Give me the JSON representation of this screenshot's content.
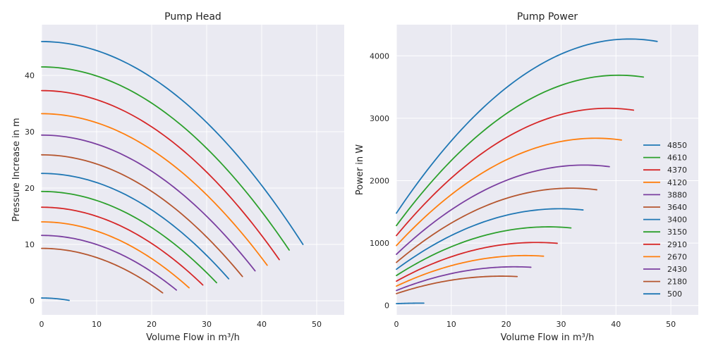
{
  "chart_data": [
    {
      "type": "line",
      "title": "Pump Head",
      "xlabel": "Volume Flow in m³/h",
      "ylabel": "Pressure Increase in m",
      "xlim": [
        0,
        55
      ],
      "ylim": [
        -2.5,
        49
      ],
      "xticks": [
        0,
        10,
        20,
        30,
        40,
        50
      ],
      "yticks": [
        0,
        10,
        20,
        30,
        40
      ],
      "grid": true,
      "legend": "none",
      "series": [
        {
          "rpm": "4850",
          "color": "#1f77b4",
          "shape": "head",
          "h0": 46.0,
          "qmax": 47.5,
          "hend": 10.0
        },
        {
          "rpm": "4610",
          "color": "#2ca02c",
          "shape": "head",
          "h0": 41.5,
          "qmax": 45.0,
          "hend": 9.0
        },
        {
          "rpm": "4370",
          "color": "#d62728",
          "shape": "head",
          "h0": 37.3,
          "qmax": 43.2,
          "hend": 7.3
        },
        {
          "rpm": "4120",
          "color": "#ff7f0e",
          "shape": "head",
          "h0": 33.2,
          "qmax": 41.0,
          "hend": 6.3
        },
        {
          "rpm": "3880",
          "color": "#7b3fa0",
          "shape": "head",
          "h0": 29.4,
          "qmax": 38.8,
          "hend": 5.3
        },
        {
          "rpm": "3640",
          "color": "#b5562f",
          "shape": "head",
          "h0": 25.9,
          "qmax": 36.5,
          "hend": 4.3
        },
        {
          "rpm": "3400",
          "color": "#1f77b4",
          "shape": "head",
          "h0": 22.6,
          "qmax": 34.0,
          "hend": 3.9
        },
        {
          "rpm": "3150",
          "color": "#2ca02c",
          "shape": "head",
          "h0": 19.4,
          "qmax": 31.8,
          "hend": 3.2
        },
        {
          "rpm": "2910",
          "color": "#d62728",
          "shape": "head",
          "h0": 16.6,
          "qmax": 29.3,
          "hend": 2.8
        },
        {
          "rpm": "2670",
          "color": "#ff7f0e",
          "shape": "head",
          "h0": 14.0,
          "qmax": 26.8,
          "hend": 2.3
        },
        {
          "rpm": "2430",
          "color": "#7b3fa0",
          "shape": "head",
          "h0": 11.6,
          "qmax": 24.5,
          "hend": 1.9
        },
        {
          "rpm": "2180",
          "color": "#b5562f",
          "shape": "head",
          "h0": 9.3,
          "qmax": 22.0,
          "hend": 1.4
        },
        {
          "rpm": "500",
          "color": "#1f77b4",
          "shape": "head",
          "h0": 0.49,
          "qmax": 5.0,
          "hend": 0.07
        }
      ]
    },
    {
      "type": "line",
      "title": "Pump Power",
      "xlabel": "Volume Flow in m³/h",
      "ylabel": "Power in W",
      "xlim": [
        0,
        55
      ],
      "ylim": [
        -150,
        4500
      ],
      "xticks": [
        0,
        10,
        20,
        30,
        40,
        50
      ],
      "yticks": [
        0,
        1000,
        2000,
        3000,
        4000
      ],
      "grid": true,
      "legend": "center-right",
      "series": [
        {
          "name": "4850",
          "color": "#1f77b4",
          "p0": 1480,
          "qpk": 42.5,
          "ppk": 4270,
          "qmax": 47.5
        },
        {
          "name": "4610",
          "color": "#2ca02c",
          "p0": 1280,
          "qpk": 40.5,
          "ppk": 3690,
          "qmax": 45.0
        },
        {
          "name": "4370",
          "color": "#d62728",
          "p0": 1120,
          "qpk": 38.5,
          "ppk": 3160,
          "qmax": 43.2
        },
        {
          "name": "4120",
          "color": "#ff7f0e",
          "p0": 960,
          "qpk": 36.3,
          "ppk": 2680,
          "qmax": 41.0
        },
        {
          "name": "3880",
          "color": "#7b3fa0",
          "p0": 820,
          "qpk": 34.2,
          "ppk": 2250,
          "qmax": 38.8
        },
        {
          "name": "3640",
          "color": "#b5562f",
          "p0": 690,
          "qpk": 31.8,
          "ppk": 1880,
          "qmax": 36.5
        },
        {
          "name": "3400",
          "color": "#1f77b4",
          "p0": 580,
          "qpk": 29.8,
          "ppk": 1550,
          "qmax": 34.0
        },
        {
          "name": "3150",
          "color": "#2ca02c",
          "p0": 480,
          "qpk": 27.7,
          "ppk": 1260,
          "qmax": 31.8
        },
        {
          "name": "2910",
          "color": "#d62728",
          "p0": 390,
          "qpk": 25.5,
          "ppk": 1010,
          "qmax": 29.3
        },
        {
          "name": "2670",
          "color": "#ff7f0e",
          "p0": 310,
          "qpk": 23.5,
          "ppk": 800,
          "qmax": 26.8
        },
        {
          "name": "2430",
          "color": "#7b3fa0",
          "p0": 240,
          "qpk": 21.5,
          "ppk": 620,
          "qmax": 24.5
        },
        {
          "name": "2180",
          "color": "#b5562f",
          "p0": 190,
          "qpk": 19.2,
          "ppk": 470,
          "qmax": 22.0
        },
        {
          "name": "500",
          "color": "#1f77b4",
          "p0": 30,
          "qpk": 5.0,
          "ppk": 38,
          "qmax": 5.0
        }
      ]
    }
  ]
}
